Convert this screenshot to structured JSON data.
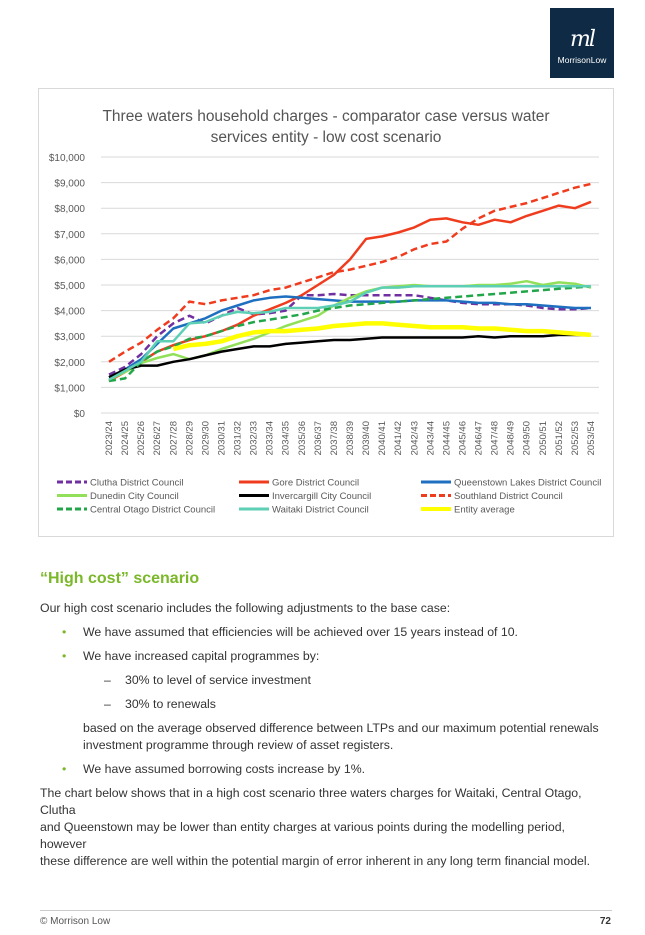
{
  "logo": {
    "text": "MorrisonLow",
    "mark": "ml"
  },
  "chart_data": {
    "type": "line",
    "title": "Three waters household charges - comparator case versus water services entity - low cost scenario",
    "title_lines": [
      "Three waters household charges - comparator case versus water",
      "services entity - low cost scenario"
    ],
    "categories": [
      "2023/24",
      "2024/25",
      "2025/26",
      "2026/27",
      "2027/28",
      "2028/29",
      "2029/30",
      "2030/31",
      "2031/32",
      "2032/33",
      "2033/34",
      "2034/35",
      "2035/36",
      "2036/37",
      "2037/38",
      "2038/39",
      "2039/40",
      "2040/41",
      "2041/42",
      "2042/43",
      "2043/44",
      "2044/45",
      "2045/46",
      "2046/47",
      "2047/48",
      "2048/49",
      "2049/50",
      "2050/51",
      "2051/52",
      "2052/53",
      "2053/54"
    ],
    "ylim": [
      0,
      10000
    ],
    "yticks": [
      "$0",
      "$1,000",
      "$2,000",
      "$3,000",
      "$4,000",
      "$5,000",
      "$6,000",
      "$7,000",
      "$8,000",
      "$9,000",
      "$10,000"
    ],
    "grid": true,
    "legend": "bottom",
    "series": [
      {
        "name": "Clutha District Council",
        "color": "#7030a0",
        "dash": true,
        "values": [
          1500,
          1800,
          2300,
          3000,
          3500,
          3800,
          3500,
          3800,
          4100,
          3850,
          3900,
          4000,
          4600,
          4600,
          4650,
          4600,
          4600,
          4600,
          4600,
          4600,
          4500,
          4400,
          4300,
          4250,
          4250,
          4250,
          4200,
          4100,
          4050,
          4050,
          4100
        ]
      },
      {
        "name": "Gore District Council",
        "color": "#f03c1e",
        "dash": false,
        "values": [
          1250,
          1600,
          2000,
          2400,
          2650,
          2850,
          3000,
          3200,
          3450,
          3800,
          4050,
          4300,
          4600,
          5000,
          5400,
          6000,
          6800,
          6900,
          7050,
          7250,
          7550,
          7600,
          7450,
          7350,
          7550,
          7450,
          7700,
          7900,
          8100,
          8000,
          8250
        ]
      },
      {
        "name": "Queenstown Lakes District Council",
        "color": "#1f6fc0",
        "dash": false,
        "values": [
          1400,
          1700,
          2100,
          2700,
          3300,
          3500,
          3700,
          4000,
          4200,
          4400,
          4500,
          4550,
          4500,
          4450,
          4400,
          4350,
          4350,
          4350,
          4350,
          4400,
          4400,
          4400,
          4350,
          4300,
          4300,
          4250,
          4250,
          4200,
          4150,
          4100,
          4100
        ]
      },
      {
        "name": "Dunedin City Council",
        "color": "#92e05a",
        "dash": false,
        "values": [
          1300,
          1600,
          1950,
          2150,
          2300,
          2100,
          2250,
          2500,
          2700,
          2900,
          3150,
          3400,
          3600,
          3800,
          4200,
          4500,
          4750,
          4900,
          4950,
          5000,
          4950,
          4950,
          4950,
          5000,
          5000,
          5050,
          5150,
          5000,
          5100,
          5050,
          4900
        ]
      },
      {
        "name": "Invercargill City Council",
        "color": "#000000",
        "dash": false,
        "values": [
          1400,
          1700,
          1850,
          1850,
          2000,
          2100,
          2250,
          2400,
          2500,
          2600,
          2600,
          2700,
          2750,
          2800,
          2850,
          2850,
          2900,
          2950,
          2950,
          2950,
          2950,
          2950,
          2950,
          3000,
          2950,
          3000,
          3000,
          3000,
          3050,
          3050,
          3050
        ]
      },
      {
        "name": "Southland District Council",
        "color": "#f03c1e",
        "dash": true,
        "values": [
          2000,
          2400,
          2750,
          3250,
          3700,
          4350,
          4250,
          4400,
          4500,
          4600,
          4800,
          4900,
          5100,
          5300,
          5500,
          5600,
          5750,
          5900,
          6100,
          6400,
          6600,
          6700,
          7200,
          7600,
          7900,
          8050,
          8200,
          8400,
          8600,
          8800,
          8950
        ]
      },
      {
        "name": "Central Otago District Council",
        "color": "#22a64a",
        "dash": true,
        "values": [
          1250,
          1350,
          2000,
          2400,
          2600,
          2900,
          3000,
          3200,
          3400,
          3550,
          3650,
          3750,
          3850,
          4000,
          4100,
          4200,
          4250,
          4300,
          4350,
          4400,
          4450,
          4500,
          4550,
          4600,
          4650,
          4700,
          4750,
          4800,
          4850,
          4900,
          4950
        ]
      },
      {
        "name": "Waitaki District Council",
        "color": "#5ccfb4",
        "dash": false,
        "values": [
          1300,
          1650,
          2000,
          2800,
          2800,
          3500,
          3550,
          3800,
          3950,
          3900,
          3950,
          4100,
          4100,
          4100,
          4200,
          4350,
          4700,
          4900,
          4900,
          4950,
          4950,
          4950,
          4950,
          4950,
          4950,
          4950,
          4950,
          4950,
          4950,
          4950,
          4950
        ]
      },
      {
        "name": "Entity average",
        "color": "#ffff00",
        "dash": false,
        "values": [
          null,
          null,
          null,
          null,
          2500,
          2650,
          2700,
          2800,
          3000,
          3150,
          3200,
          3200,
          3250,
          3300,
          3400,
          3450,
          3500,
          3500,
          3450,
          3400,
          3350,
          3350,
          3350,
          3300,
          3300,
          3250,
          3200,
          3200,
          3150,
          3100,
          3050
        ]
      }
    ]
  },
  "section": {
    "heading": "“High cost” scenario",
    "intro": "Our high cost scenario includes the following adjustments to the base case:",
    "bullets": [
      "We have assumed that efficiencies will be achieved over 15 years instead of 10.",
      "We have increased capital programmes by:",
      "We have assumed borrowing costs increase by 1%."
    ],
    "sub_bullets": [
      "30% to level of service investment",
      "30% to renewals"
    ],
    "sub_note_lines": [
      "based on the average observed difference between LTPs and our maximum potential renewals",
      "investment programme through review of asset registers."
    ],
    "closing_lines": [
      "The chart below shows that in a high cost scenario three waters charges for Waitaki, Central Otago, Clutha",
      "and Queenstown may be lower than entity charges at various points during the modelling period, however",
      "these difference are well within the potential margin of error inherent in any long term financial model."
    ]
  },
  "footer": {
    "left": "© Morrison Low",
    "page": "72"
  }
}
